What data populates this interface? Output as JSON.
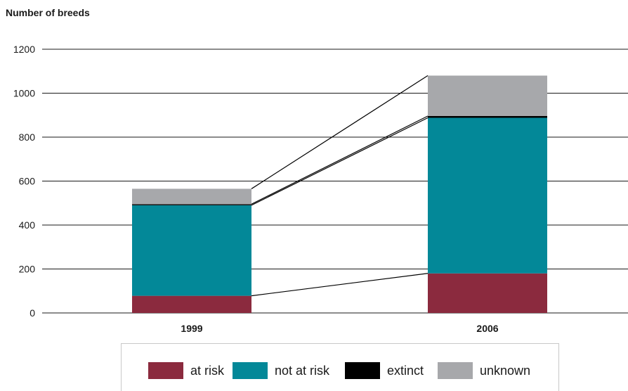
{
  "chart_data": {
    "type": "bar",
    "stacked": true,
    "ylabel": "Number of breeds",
    "ylim": [
      0,
      1200
    ],
    "yticks": [
      "0",
      "200",
      "400",
      "600",
      "800",
      "1000",
      "1200"
    ],
    "categories": [
      "1999",
      "2006"
    ],
    "series": [
      {
        "name": "at risk",
        "color": "#8b2a3e",
        "values": [
          78,
          180
        ]
      },
      {
        "name": "not at risk",
        "color": "#038898",
        "values": [
          412,
          708
        ]
      },
      {
        "name": "extinct",
        "color": "#000000",
        "values": [
          5,
          8
        ]
      },
      {
        "name": "unknown",
        "color": "#a7a8ab",
        "values": [
          70,
          184
        ]
      }
    ],
    "grid": true,
    "connector_lines": true,
    "legend_position": "bottom"
  }
}
